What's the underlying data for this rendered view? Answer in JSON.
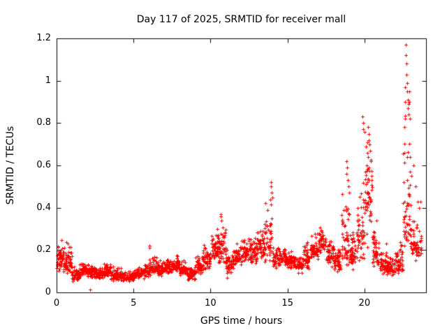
{
  "chart_data": {
    "type": "scatter",
    "title": "Day 117 of 2025, SRMTID for receiver mall",
    "xlabel": "GPS time / hours",
    "ylabel": "SRMTID / TECUs",
    "xlim": [
      0,
      24
    ],
    "ylim": [
      0,
      1.2
    ],
    "xticks": [
      0,
      5,
      10,
      15,
      20
    ],
    "yticks": [
      0,
      0.2,
      0.4,
      0.6,
      0.8,
      1,
      1.2
    ],
    "grid": false,
    "legend": "none",
    "marker": "plus",
    "marker_color": "#ff0000",
    "border_color": "#000000",
    "text_color": "#000000",
    "series": [
      {
        "name": "SRMTID",
        "sampling": "envelope",
        "seed": 117,
        "envelope_format": [
          "t_start",
          "t_end",
          "mean",
          "min",
          "max",
          "n_points"
        ],
        "envelope": [
          [
            0.0,
            0.5,
            0.16,
            0.08,
            0.26,
            55
          ],
          [
            0.5,
            1.0,
            0.14,
            0.05,
            0.27,
            55
          ],
          [
            1.0,
            1.5,
            0.08,
            0.04,
            0.13,
            50
          ],
          [
            1.5,
            2.0,
            0.11,
            0.07,
            0.16,
            50
          ],
          [
            2.0,
            2.5,
            0.1,
            0.06,
            0.14,
            50
          ],
          [
            2.5,
            3.0,
            0.09,
            0.05,
            0.13,
            50
          ],
          [
            3.0,
            3.5,
            0.1,
            0.06,
            0.15,
            50
          ],
          [
            3.5,
            4.0,
            0.08,
            0.05,
            0.13,
            50
          ],
          [
            4.0,
            4.5,
            0.08,
            0.05,
            0.12,
            50
          ],
          [
            4.5,
            5.0,
            0.07,
            0.04,
            0.11,
            50
          ],
          [
            5.0,
            5.5,
            0.09,
            0.06,
            0.13,
            50
          ],
          [
            5.5,
            6.0,
            0.1,
            0.06,
            0.15,
            50
          ],
          [
            6.0,
            6.5,
            0.12,
            0.07,
            0.22,
            50
          ],
          [
            6.5,
            7.0,
            0.11,
            0.07,
            0.16,
            50
          ],
          [
            7.0,
            7.5,
            0.12,
            0.08,
            0.17,
            50
          ],
          [
            7.5,
            8.0,
            0.13,
            0.09,
            0.18,
            50
          ],
          [
            8.0,
            8.5,
            0.11,
            0.07,
            0.16,
            50
          ],
          [
            8.5,
            9.0,
            0.09,
            0.05,
            0.14,
            50
          ],
          [
            9.0,
            9.5,
            0.12,
            0.07,
            0.19,
            50
          ],
          [
            9.5,
            10.0,
            0.16,
            0.1,
            0.24,
            50
          ],
          [
            10.0,
            10.5,
            0.2,
            0.13,
            0.31,
            50
          ],
          [
            10.5,
            11.0,
            0.21,
            0.11,
            0.37,
            50
          ],
          [
            11.0,
            11.5,
            0.13,
            0.04,
            0.22,
            50
          ],
          [
            11.5,
            12.0,
            0.17,
            0.11,
            0.25,
            50
          ],
          [
            12.0,
            12.5,
            0.19,
            0.13,
            0.28,
            50
          ],
          [
            12.5,
            13.0,
            0.18,
            0.11,
            0.3,
            50
          ],
          [
            13.0,
            13.5,
            0.21,
            0.14,
            0.33,
            50
          ],
          [
            13.5,
            14.0,
            0.24,
            0.12,
            0.5,
            50
          ],
          [
            14.0,
            14.5,
            0.16,
            0.09,
            0.26,
            50
          ],
          [
            14.5,
            15.0,
            0.16,
            0.11,
            0.23,
            50
          ],
          [
            15.0,
            15.5,
            0.15,
            0.1,
            0.21,
            50
          ],
          [
            15.5,
            16.0,
            0.13,
            0.08,
            0.19,
            50
          ],
          [
            16.0,
            16.5,
            0.16,
            0.1,
            0.26,
            50
          ],
          [
            16.5,
            17.0,
            0.21,
            0.14,
            0.31,
            50
          ],
          [
            17.0,
            17.5,
            0.24,
            0.17,
            0.33,
            50
          ],
          [
            17.5,
            18.0,
            0.18,
            0.11,
            0.26,
            50
          ],
          [
            18.0,
            18.5,
            0.15,
            0.09,
            0.23,
            50
          ],
          [
            18.5,
            19.0,
            0.2,
            0.1,
            0.55,
            50
          ],
          [
            19.0,
            19.5,
            0.17,
            0.09,
            0.3,
            50
          ],
          [
            19.5,
            20.0,
            0.28,
            0.13,
            0.6,
            50
          ],
          [
            20.0,
            20.5,
            0.45,
            0.18,
            0.78,
            55
          ],
          [
            20.5,
            21.0,
            0.19,
            0.09,
            0.38,
            50
          ],
          [
            21.0,
            21.5,
            0.13,
            0.07,
            0.24,
            50
          ],
          [
            21.5,
            22.0,
            0.11,
            0.07,
            0.19,
            50
          ],
          [
            22.0,
            22.5,
            0.13,
            0.08,
            0.26,
            50
          ],
          [
            22.5,
            23.0,
            0.35,
            0.12,
            0.95,
            55
          ],
          [
            23.0,
            23.5,
            0.22,
            0.12,
            0.43,
            45
          ],
          [
            23.5,
            23.7,
            0.22,
            0.14,
            0.35,
            15
          ]
        ],
        "peaks": [
          [
            2.2,
            0.012
          ],
          [
            6.02,
            0.22
          ],
          [
            6.05,
            0.21
          ],
          [
            10.65,
            0.37
          ],
          [
            10.68,
            0.36
          ],
          [
            10.72,
            0.34
          ],
          [
            13.9,
            0.44
          ],
          [
            13.92,
            0.52
          ],
          [
            13.95,
            0.5
          ],
          [
            13.97,
            0.47
          ],
          [
            14.0,
            0.45
          ],
          [
            18.82,
            0.56
          ],
          [
            18.85,
            0.62
          ],
          [
            18.88,
            0.59
          ],
          [
            18.9,
            0.53
          ],
          [
            18.95,
            0.5
          ],
          [
            19.0,
            0.47
          ],
          [
            19.88,
            0.83
          ],
          [
            19.9,
            0.8
          ],
          [
            19.93,
            0.77
          ],
          [
            20.15,
            0.6
          ],
          [
            20.2,
            0.66
          ],
          [
            20.22,
            0.64
          ],
          [
            20.25,
            0.78
          ],
          [
            20.28,
            0.75
          ],
          [
            20.3,
            0.72
          ],
          [
            20.33,
            0.7
          ],
          [
            20.36,
            0.67
          ],
          [
            20.4,
            0.62
          ],
          [
            20.45,
            0.55
          ],
          [
            22.6,
            0.78
          ],
          [
            22.62,
            0.82
          ],
          [
            22.64,
            0.9
          ],
          [
            22.66,
            0.97
          ],
          [
            22.68,
            1.17
          ],
          [
            22.7,
            1.12
          ],
          [
            22.72,
            1.08
          ],
          [
            22.74,
            1.03
          ],
          [
            22.76,
            0.99
          ],
          [
            22.78,
            0.95
          ],
          [
            22.8,
            0.91
          ],
          [
            22.83,
            0.87
          ],
          [
            22.86,
            0.84
          ],
          [
            22.88,
            0.89
          ],
          [
            22.9,
            0.95
          ],
          [
            22.93,
            0.9
          ],
          [
            22.96,
            0.82
          ],
          [
            23.05,
            0.55
          ],
          [
            23.2,
            0.6
          ],
          [
            23.3,
            0.5
          ],
          [
            23.45,
            0.43
          ],
          [
            23.55,
            0.4
          ],
          [
            23.62,
            0.43
          ]
        ]
      }
    ]
  }
}
